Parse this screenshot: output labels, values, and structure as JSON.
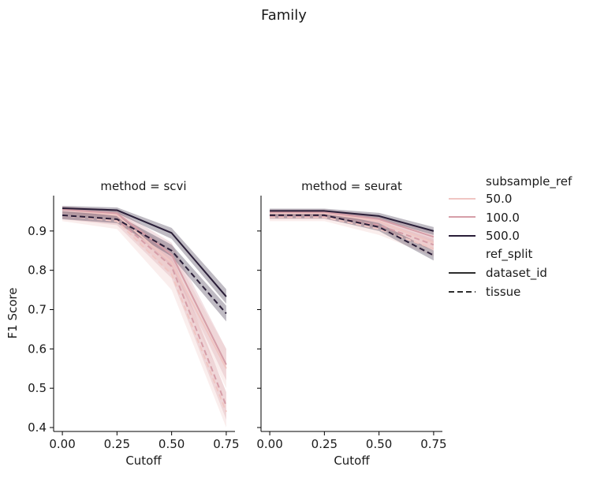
{
  "figure_title": "Family",
  "colors": {
    "50.0": "#f0c6c3",
    "100.0": "#d69ea8",
    "500.0": "#2a1e38",
    "split_legend": "#2d2d2d"
  },
  "legend": {
    "hue_title": "subsample_ref",
    "hue_items": [
      "50.0",
      "100.0",
      "500.0"
    ],
    "style_title": "ref_split",
    "style_items": [
      {
        "label": "dataset_id",
        "dash": "solid"
      },
      {
        "label": "tissue",
        "dash": "dashed"
      }
    ]
  },
  "chart_data": [
    {
      "type": "line",
      "title": "method = scvi",
      "xlabel": "Cutoff",
      "ylabel": "F1 Score",
      "xlim": [
        -0.04,
        0.79
      ],
      "ylim": [
        0.39,
        0.99
      ],
      "xticks": [
        "0.00",
        "0.25",
        "0.50",
        "0.75"
      ],
      "yticks": [
        "0.4",
        "0.5",
        "0.6",
        "0.7",
        "0.8",
        "0.9"
      ],
      "x": [
        0.0,
        0.25,
        0.5,
        0.75
      ],
      "series": [
        {
          "subsample_ref": "50.0",
          "ref_split": "dataset_id",
          "values": [
            0.955,
            0.94,
            0.82,
            0.55
          ],
          "ci_low": [
            0.945,
            0.925,
            0.79,
            0.5
          ],
          "ci_high": [
            0.963,
            0.952,
            0.85,
            0.6
          ]
        },
        {
          "subsample_ref": "50.0",
          "ref_split": "tissue",
          "values": [
            0.94,
            0.925,
            0.79,
            0.44
          ],
          "ci_low": [
            0.925,
            0.905,
            0.75,
            0.4
          ],
          "ci_high": [
            0.952,
            0.94,
            0.83,
            0.49
          ]
        },
        {
          "subsample_ref": "100.0",
          "ref_split": "dataset_id",
          "values": [
            0.955,
            0.945,
            0.84,
            0.56
          ],
          "ci_low": [
            0.948,
            0.935,
            0.81,
            0.52
          ],
          "ci_high": [
            0.962,
            0.955,
            0.87,
            0.6
          ]
        },
        {
          "subsample_ref": "100.0",
          "ref_split": "tissue",
          "values": [
            0.94,
            0.93,
            0.81,
            0.455
          ],
          "ci_low": [
            0.93,
            0.915,
            0.78,
            0.42
          ],
          "ci_high": [
            0.95,
            0.945,
            0.84,
            0.49
          ]
        },
        {
          "subsample_ref": "500.0",
          "ref_split": "dataset_id",
          "values": [
            0.958,
            0.953,
            0.895,
            0.733
          ],
          "ci_low": [
            0.952,
            0.945,
            0.88,
            0.715
          ],
          "ci_high": [
            0.964,
            0.96,
            0.908,
            0.752
          ]
        },
        {
          "subsample_ref": "500.0",
          "ref_split": "tissue",
          "values": [
            0.94,
            0.93,
            0.85,
            0.69
          ],
          "ci_low": [
            0.93,
            0.92,
            0.835,
            0.67
          ],
          "ci_high": [
            0.95,
            0.94,
            0.865,
            0.71
          ]
        }
      ]
    },
    {
      "type": "line",
      "title": "method = seurat",
      "xlabel": "Cutoff",
      "ylabel": "",
      "xlim": [
        -0.04,
        0.79
      ],
      "ylim": [
        0.39,
        0.99
      ],
      "xticks": [
        "0.00",
        "0.25",
        "0.50",
        "0.75"
      ],
      "yticks": [],
      "x": [
        0.0,
        0.25,
        0.5,
        0.75
      ],
      "series": [
        {
          "subsample_ref": "50.0",
          "ref_split": "dataset_id",
          "values": [
            0.945,
            0.945,
            0.925,
            0.87
          ],
          "ci_low": [
            0.935,
            0.935,
            0.91,
            0.85
          ],
          "ci_high": [
            0.952,
            0.952,
            0.935,
            0.89
          ]
        },
        {
          "subsample_ref": "50.0",
          "ref_split": "tissue",
          "values": [
            0.935,
            0.935,
            0.905,
            0.855
          ],
          "ci_low": [
            0.925,
            0.925,
            0.89,
            0.835
          ],
          "ci_high": [
            0.945,
            0.945,
            0.92,
            0.875
          ]
        },
        {
          "subsample_ref": "100.0",
          "ref_split": "dataset_id",
          "values": [
            0.948,
            0.948,
            0.93,
            0.885
          ],
          "ci_low": [
            0.94,
            0.94,
            0.92,
            0.87
          ],
          "ci_high": [
            0.955,
            0.955,
            0.94,
            0.9
          ]
        },
        {
          "subsample_ref": "100.0",
          "ref_split": "tissue",
          "values": [
            0.938,
            0.938,
            0.915,
            0.865
          ],
          "ci_low": [
            0.93,
            0.93,
            0.905,
            0.85
          ],
          "ci_high": [
            0.947,
            0.947,
            0.925,
            0.88
          ]
        },
        {
          "subsample_ref": "500.0",
          "ref_split": "dataset_id",
          "values": [
            0.951,
            0.951,
            0.938,
            0.9
          ],
          "ci_low": [
            0.945,
            0.945,
            0.93,
            0.89
          ],
          "ci_high": [
            0.957,
            0.957,
            0.946,
            0.91
          ]
        },
        {
          "subsample_ref": "500.0",
          "ref_split": "tissue",
          "values": [
            0.94,
            0.94,
            0.91,
            0.838
          ],
          "ci_low": [
            0.932,
            0.932,
            0.9,
            0.825
          ],
          "ci_high": [
            0.948,
            0.948,
            0.92,
            0.85
          ]
        }
      ]
    }
  ]
}
